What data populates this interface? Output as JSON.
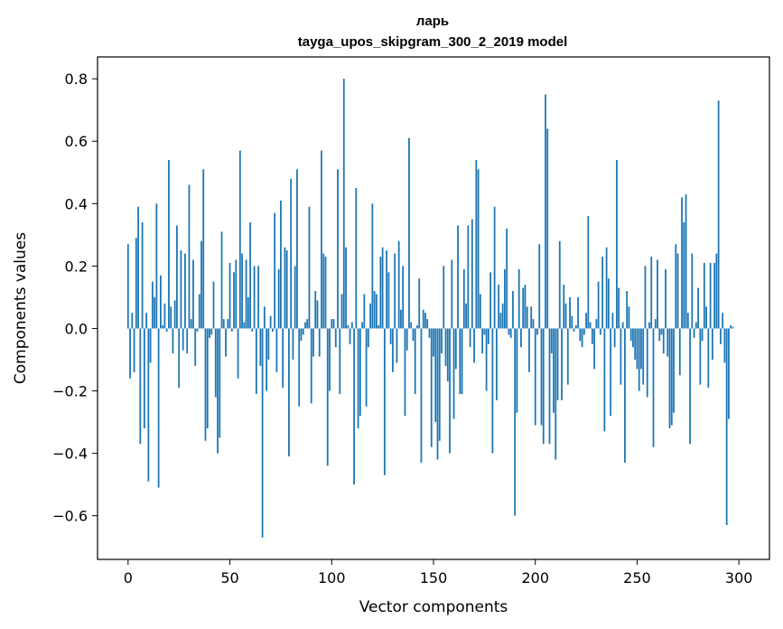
{
  "chart_data": {
    "type": "bar",
    "title_line1": "ларь",
    "title_line2": "tayga_upos_skipgram_300_2_2019 model",
    "xlabel": "Vector components",
    "ylabel": "Components values",
    "xlim": [
      -15,
      315
    ],
    "ylim": [
      -0.74,
      0.87
    ],
    "xticks": [
      {
        "value": 0,
        "label": "0"
      },
      {
        "value": 50,
        "label": "50"
      },
      {
        "value": 100,
        "label": "100"
      },
      {
        "value": 150,
        "label": "150"
      },
      {
        "value": 200,
        "label": "200"
      },
      {
        "value": 250,
        "label": "250"
      },
      {
        "value": 300,
        "label": "300"
      }
    ],
    "yticks": [
      {
        "value": -0.6,
        "label": "−0.6"
      },
      {
        "value": -0.4,
        "label": "−0.4"
      },
      {
        "value": -0.2,
        "label": "−0.2"
      },
      {
        "value": 0.0,
        "label": "0.0"
      },
      {
        "value": 0.2,
        "label": "0.2"
      },
      {
        "value": 0.4,
        "label": "0.4"
      },
      {
        "value": 0.6,
        "label": "0.6"
      },
      {
        "value": 0.8,
        "label": "0.8"
      }
    ],
    "bar_color": "#1f77b4",
    "grid": false,
    "values": [
      0.27,
      -0.16,
      0.05,
      -0.14,
      0.29,
      0.39,
      -0.37,
      0.34,
      -0.32,
      0.05,
      -0.49,
      -0.11,
      0.15,
      0.1,
      0.4,
      -0.51,
      0.17,
      0.01,
      0.08,
      -0.01,
      0.54,
      0.07,
      -0.08,
      0.09,
      0.33,
      -0.19,
      0.25,
      -0.07,
      0.24,
      -0.08,
      0.46,
      0.03,
      0.22,
      -0.12,
      -0.01,
      0.11,
      0.28,
      0.51,
      -0.36,
      -0.32,
      -0.03,
      -0.02,
      0.15,
      -0.22,
      -0.4,
      -0.35,
      0.31,
      0.03,
      -0.09,
      0.03,
      0.21,
      -0.01,
      0.18,
      0.22,
      -0.16,
      0.57,
      0.24,
      0.02,
      0.22,
      0.1,
      0.34,
      -0.01,
      0.2,
      -0.21,
      0.2,
      -0.12,
      -0.67,
      0.07,
      -0.2,
      -0.1,
      0.04,
      -0.01,
      0.37,
      -0.14,
      0.19,
      0.41,
      -0.19,
      0.26,
      0.25,
      -0.41,
      0.48,
      -0.1,
      0.2,
      0.51,
      -0.25,
      -0.04,
      -0.02,
      0.02,
      0.03,
      0.39,
      -0.24,
      -0.09,
      0.12,
      0.09,
      -0.09,
      0.57,
      0.24,
      0.23,
      -0.44,
      -0.2,
      0.03,
      0.03,
      -0.06,
      0.51,
      -0.21,
      0.11,
      0.8,
      0.26,
      0.01,
      -0.05,
      0.02,
      -0.5,
      0.45,
      -0.32,
      -0.28,
      0.02,
      0.11,
      -0.25,
      -0.06,
      0.08,
      0.4,
      0.12,
      0.11,
      0.01,
      0.23,
      0.26,
      -0.47,
      0.25,
      0.18,
      -0.05,
      -0.14,
      0.24,
      -0.11,
      0.28,
      0.06,
      0.2,
      -0.28,
      -0.07,
      0.61,
      0.02,
      -0.04,
      -0.21,
      0.01,
      0.16,
      -0.43,
      0.06,
      0.05,
      0.03,
      -0.03,
      -0.38,
      -0.09,
      -0.3,
      -0.42,
      -0.36,
      -0.08,
      0.2,
      -0.12,
      -0.17,
      -0.4,
      0.22,
      -0.29,
      -0.13,
      0.33,
      -0.21,
      -0.21,
      0.19,
      0.08,
      0.33,
      -0.06,
      0.35,
      -0.11,
      0.54,
      0.51,
      0.11,
      -0.08,
      -0.02,
      -0.2,
      -0.05,
      0.18,
      -0.4,
      0.39,
      -0.23,
      0.14,
      0.05,
      0.08,
      0.19,
      0.32,
      -0.02,
      -0.03,
      0.12,
      -0.6,
      -0.27,
      0.19,
      -0.06,
      0.13,
      0.14,
      0.07,
      -0.14,
      0.07,
      0.03,
      -0.31,
      -0.02,
      0.27,
      -0.31,
      -0.37,
      0.75,
      0.64,
      -0.37,
      -0.08,
      -0.27,
      -0.42,
      -0.23,
      0.28,
      -0.23,
      0.14,
      0.08,
      -0.18,
      0.1,
      0.04,
      -0.01,
      0.01,
      0.1,
      -0.04,
      -0.06,
      -0.02,
      0.05,
      0.36,
      0.02,
      -0.05,
      -0.13,
      0.03,
      0.15,
      -0.02,
      0.23,
      -0.33,
      0.26,
      0.16,
      -0.28,
      0.05,
      -0.06,
      0.54,
      0.13,
      -0.18,
      0.02,
      -0.43,
      0.12,
      0.07,
      -0.04,
      -0.06,
      -0.1,
      -0.13,
      -0.2,
      -0.13,
      -0.18,
      0.2,
      -0.22,
      0.02,
      0.23,
      -0.38,
      0.03,
      0.22,
      -0.04,
      -0.02,
      -0.08,
      0.19,
      -0.09,
      -0.32,
      -0.31,
      -0.27,
      0.27,
      0.24,
      -0.15,
      0.42,
      0.34,
      0.43,
      0.05,
      -0.37,
      0.24,
      -0.03,
      0.02,
      0.13,
      -0.18,
      -0.04,
      0.21,
      0.07,
      -0.19,
      0.21,
      -0.1,
      0.21,
      0.24,
      0.73,
      -0.05,
      0.05,
      -0.11,
      -0.63,
      -0.29,
      0.01,
      0.005
    ]
  }
}
